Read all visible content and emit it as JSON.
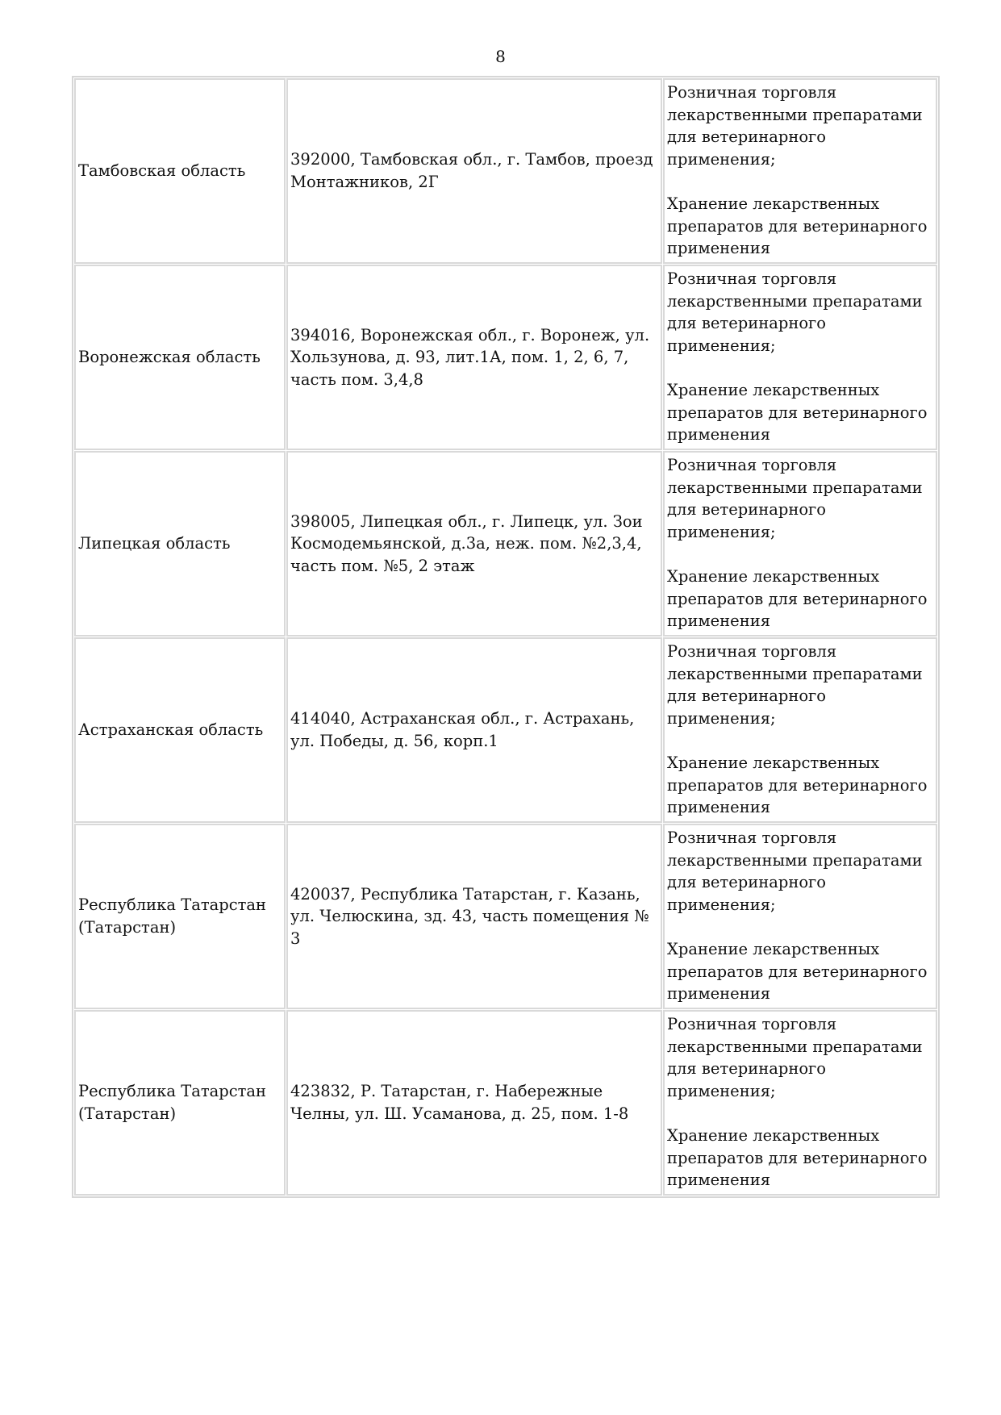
{
  "page_number": "8",
  "rows": [
    {
      "region": "Тамбовская область",
      "address": "392000, Тамбовская обл., г. Тамбов, проезд Монтажников, 2Г",
      "activity1": "Розничная торговля лекарственными препаратами для ветеринарного применения;",
      "activity2": "Хранение лекарственных препаратов для ветеринарного применения"
    },
    {
      "region": "Воронежская область",
      "address": "394016, Воронежская обл., г. Воронеж, ул. Хользунова, д. 93, лит.1А, пом. 1, 2, 6, 7, часть пом. 3,4,8",
      "activity1": "Розничная торговля лекарственными препаратами для ветеринарного применения;",
      "activity2": "Хранение лекарственных препаратов для ветеринарного применения"
    },
    {
      "region": "Липецкая область",
      "address": "398005, Липецкая обл., г. Липецк, ул. Зои Космодемьянской, д.3а, неж. пом. №2,3,4, часть пом. №5, 2 этаж",
      "activity1": "Розничная торговля лекарственными препаратами для ветеринарного применения;",
      "activity2": "Хранение лекарственных препаратов для ветеринарного применения"
    },
    {
      "region": "Астраханская область",
      "address": "414040, Астраханская обл., г. Астрахань, ул. Победы, д. 56, корп.1",
      "activity1": "Розничная торговля лекарственными препаратами для ветеринарного применения;",
      "activity2": "Хранение лекарственных препаратов для ветеринарного применения"
    },
    {
      "region": "Республика Татарстан (Татарстан)",
      "address": "420037, Республика Татарстан, г. Казань, ул. Челюскина, зд. 43, часть помещения № 3",
      "activity1": "Розничная торговля лекарственными препаратами для ветеринарного применения;",
      "activity2": "Хранение лекарственных препаратов для ветеринарного применения"
    },
    {
      "region": "Республика Татарстан (Татарстан)",
      "address": "423832, Р. Татарстан, г. Набережные Челны, ул. Ш. Усаманова, д. 25, пом. 1-8",
      "activity1": "Розничная торговля лекарственными препаратами для ветеринарного применения;",
      "activity2": "Хранение лекарственных препаратов для ветеринарного применения"
    }
  ]
}
